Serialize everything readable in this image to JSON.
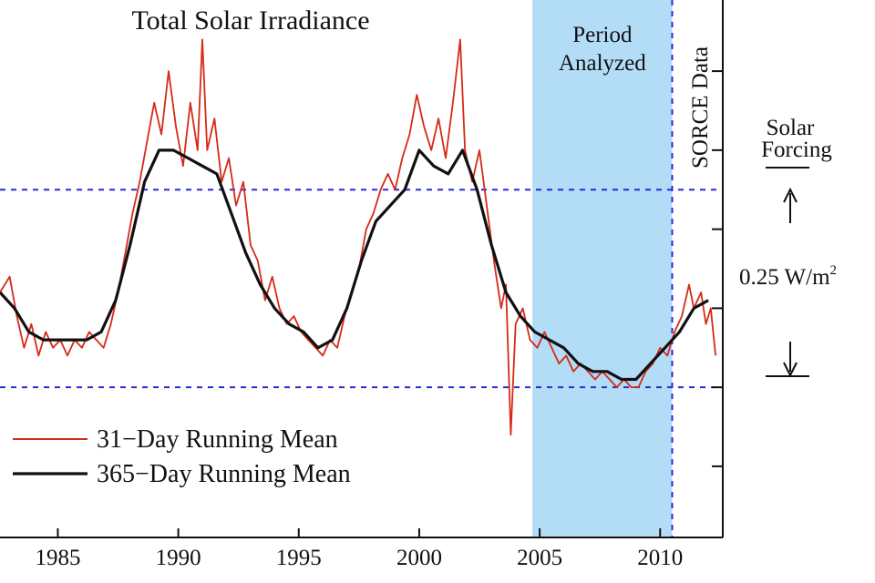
{
  "chart_data": {
    "type": "line",
    "title": "Total Solar Irradiance",
    "xlim": [
      1982.6,
      2012.6
    ],
    "x_ticks": [
      "1985",
      "1990",
      "1995",
      "2000",
      "2005",
      "2010"
    ],
    "x_tick_values": [
      1985,
      1990,
      1995,
      2000,
      2005,
      2010
    ],
    "ylim_relative_wm2": [
      -0.19,
      0.49
    ],
    "reference_lines_wm2": [
      0,
      0.25
    ],
    "shaded_region": {
      "label": "Period Analyzed",
      "x_range": [
        2004.7,
        2010.5
      ],
      "color": "#b3dcf7"
    },
    "sorce_line": {
      "x": 2010.5,
      "label": "SORCE Data"
    },
    "solar_forcing": {
      "label_line1": "Solar",
      "label_line2": "Forcing",
      "amount_label": "0.25 W/m",
      "amount_superscript": "2"
    },
    "series": [
      {
        "name": "31−Day Running Mean",
        "color": "#d62a18",
        "points": [
          [
            1982.6,
            0.12
          ],
          [
            1983.0,
            0.14
          ],
          [
            1983.3,
            0.09
          ],
          [
            1983.6,
            0.05
          ],
          [
            1983.9,
            0.08
          ],
          [
            1984.2,
            0.04
          ],
          [
            1984.5,
            0.07
          ],
          [
            1984.8,
            0.05
          ],
          [
            1985.1,
            0.06
          ],
          [
            1985.4,
            0.04
          ],
          [
            1985.7,
            0.06
          ],
          [
            1986.0,
            0.05
          ],
          [
            1986.3,
            0.07
          ],
          [
            1986.6,
            0.06
          ],
          [
            1986.9,
            0.05
          ],
          [
            1987.2,
            0.08
          ],
          [
            1987.5,
            0.12
          ],
          [
            1987.8,
            0.17
          ],
          [
            1988.1,
            0.22
          ],
          [
            1988.4,
            0.26
          ],
          [
            1988.7,
            0.31
          ],
          [
            1989.0,
            0.36
          ],
          [
            1989.3,
            0.32
          ],
          [
            1989.6,
            0.4
          ],
          [
            1989.9,
            0.33
          ],
          [
            1990.2,
            0.28
          ],
          [
            1990.5,
            0.36
          ],
          [
            1990.8,
            0.3
          ],
          [
            1991.0,
            0.44
          ],
          [
            1991.2,
            0.3
          ],
          [
            1991.5,
            0.34
          ],
          [
            1991.8,
            0.26
          ],
          [
            1992.1,
            0.29
          ],
          [
            1992.4,
            0.23
          ],
          [
            1992.7,
            0.26
          ],
          [
            1993.0,
            0.18
          ],
          [
            1993.3,
            0.16
          ],
          [
            1993.6,
            0.11
          ],
          [
            1993.9,
            0.14
          ],
          [
            1994.2,
            0.1
          ],
          [
            1994.5,
            0.08
          ],
          [
            1994.8,
            0.09
          ],
          [
            1995.1,
            0.07
          ],
          [
            1995.4,
            0.06
          ],
          [
            1995.7,
            0.05
          ],
          [
            1996.0,
            0.04
          ],
          [
            1996.3,
            0.06
          ],
          [
            1996.6,
            0.05
          ],
          [
            1996.9,
            0.09
          ],
          [
            1997.2,
            0.12
          ],
          [
            1997.5,
            0.15
          ],
          [
            1997.8,
            0.2
          ],
          [
            1998.1,
            0.22
          ],
          [
            1998.4,
            0.25
          ],
          [
            1998.7,
            0.27
          ],
          [
            1999.0,
            0.25
          ],
          [
            1999.3,
            0.29
          ],
          [
            1999.6,
            0.32
          ],
          [
            1999.9,
            0.37
          ],
          [
            2000.2,
            0.33
          ],
          [
            2000.5,
            0.3
          ],
          [
            2000.8,
            0.34
          ],
          [
            2001.1,
            0.29
          ],
          [
            2001.4,
            0.36
          ],
          [
            2001.7,
            0.44
          ],
          [
            2001.9,
            0.3
          ],
          [
            2002.2,
            0.26
          ],
          [
            2002.5,
            0.3
          ],
          [
            2002.8,
            0.23
          ],
          [
            2003.1,
            0.16
          ],
          [
            2003.4,
            0.1
          ],
          [
            2003.6,
            0.13
          ],
          [
            2003.8,
            -0.06
          ],
          [
            2004.0,
            0.08
          ],
          [
            2004.3,
            0.1
          ],
          [
            2004.6,
            0.06
          ],
          [
            2004.9,
            0.05
          ],
          [
            2005.2,
            0.07
          ],
          [
            2005.5,
            0.05
          ],
          [
            2005.8,
            0.03
          ],
          [
            2006.1,
            0.04
          ],
          [
            2006.4,
            0.02
          ],
          [
            2006.7,
            0.03
          ],
          [
            2007.0,
            0.02
          ],
          [
            2007.3,
            0.01
          ],
          [
            2007.6,
            0.02
          ],
          [
            2007.9,
            0.01
          ],
          [
            2008.2,
            0.0
          ],
          [
            2008.5,
            0.01
          ],
          [
            2008.8,
            0.0
          ],
          [
            2009.1,
            0.0
          ],
          [
            2009.4,
            0.02
          ],
          [
            2009.7,
            0.03
          ],
          [
            2010.0,
            0.05
          ],
          [
            2010.3,
            0.04
          ],
          [
            2010.6,
            0.07
          ],
          [
            2010.9,
            0.09
          ],
          [
            2011.2,
            0.13
          ],
          [
            2011.4,
            0.1
          ],
          [
            2011.7,
            0.12
          ],
          [
            2011.9,
            0.08
          ],
          [
            2012.1,
            0.1
          ],
          [
            2012.3,
            0.04
          ]
        ]
      },
      {
        "name": "365−Day Running Mean",
        "color": "#111111",
        "points": [
          [
            1982.6,
            0.12
          ],
          [
            1983.2,
            0.1
          ],
          [
            1983.8,
            0.07
          ],
          [
            1984.4,
            0.06
          ],
          [
            1985.0,
            0.06
          ],
          [
            1985.6,
            0.06
          ],
          [
            1986.2,
            0.06
          ],
          [
            1986.8,
            0.07
          ],
          [
            1987.4,
            0.11
          ],
          [
            1988.0,
            0.18
          ],
          [
            1988.6,
            0.26
          ],
          [
            1989.2,
            0.3
          ],
          [
            1989.8,
            0.3
          ],
          [
            1990.4,
            0.29
          ],
          [
            1991.0,
            0.28
          ],
          [
            1991.6,
            0.27
          ],
          [
            1992.2,
            0.22
          ],
          [
            1992.8,
            0.17
          ],
          [
            1993.4,
            0.13
          ],
          [
            1994.0,
            0.1
          ],
          [
            1994.6,
            0.08
          ],
          [
            1995.2,
            0.07
          ],
          [
            1995.8,
            0.05
          ],
          [
            1996.4,
            0.06
          ],
          [
            1997.0,
            0.1
          ],
          [
            1997.6,
            0.16
          ],
          [
            1998.2,
            0.21
          ],
          [
            1998.8,
            0.23
          ],
          [
            1999.4,
            0.25
          ],
          [
            2000.0,
            0.3
          ],
          [
            2000.6,
            0.28
          ],
          [
            2001.2,
            0.27
          ],
          [
            2001.8,
            0.3
          ],
          [
            2002.4,
            0.25
          ],
          [
            2003.0,
            0.18
          ],
          [
            2003.6,
            0.12
          ],
          [
            2004.2,
            0.09
          ],
          [
            2004.8,
            0.07
          ],
          [
            2005.4,
            0.06
          ],
          [
            2006.0,
            0.05
          ],
          [
            2006.6,
            0.03
          ],
          [
            2007.2,
            0.02
          ],
          [
            2007.8,
            0.02
          ],
          [
            2008.4,
            0.01
          ],
          [
            2009.0,
            0.01
          ],
          [
            2009.6,
            0.03
          ],
          [
            2010.2,
            0.05
          ],
          [
            2010.8,
            0.07
          ],
          [
            2011.4,
            0.1
          ],
          [
            2012.0,
            0.11
          ]
        ]
      }
    ],
    "legend": {
      "position": "bottom-left",
      "entries": [
        "31−Day Running Mean",
        "365−Day Running Mean"
      ]
    }
  }
}
